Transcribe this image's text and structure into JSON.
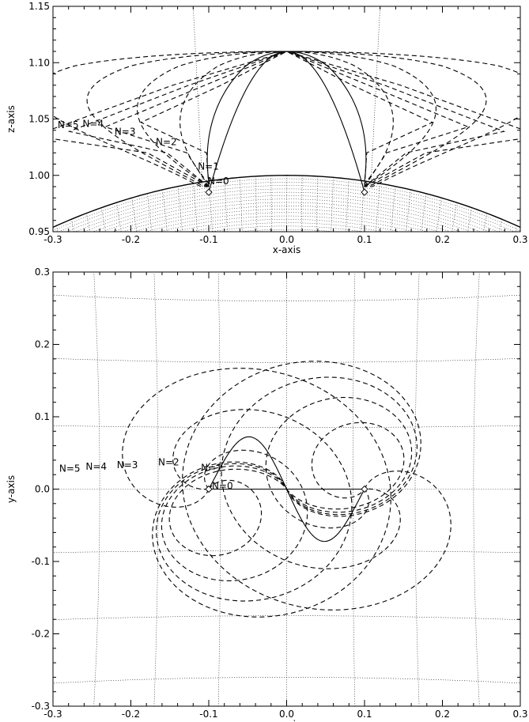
{
  "chart_data": [
    {
      "type": "line",
      "title": "",
      "xlabel": "x-axis",
      "ylabel": "z-axis",
      "xlim": [
        -0.3,
        0.3
      ],
      "ylim": [
        0.95,
        1.15
      ],
      "xticks": [
        "-0.3",
        "-0.2",
        "-0.1",
        "0.0",
        "0.1",
        "0.2",
        "0.3"
      ],
      "yticks": [
        "0.95",
        "1.00",
        "1.05",
        "1.10",
        "1.15"
      ],
      "grid": "dotted spherical grid",
      "footpoints": [
        [
          -0.1,
          0.985
        ],
        [
          0.1,
          0.985
        ]
      ],
      "labels": [
        {
          "text": "N=5",
          "x": -0.294,
          "z": 1.042
        },
        {
          "text": "N=4",
          "x": -0.262,
          "z": 1.043
        },
        {
          "text": "N=3",
          "x": -0.221,
          "z": 1.036
        },
        {
          "text": "N=2",
          "x": -0.168,
          "z": 1.027
        },
        {
          "text": "N=1",
          "x": -0.114,
          "z": 1.005
        },
        {
          "text": "N=0",
          "x": -0.101,
          "z": 0.992
        }
      ]
    },
    {
      "type": "line",
      "title": "",
      "xlabel": "x-axis",
      "ylabel": "y-axis",
      "xlim": [
        -0.3,
        0.3
      ],
      "ylim": [
        -0.3,
        0.3
      ],
      "xticks": [
        "-0.3",
        "-0.2",
        "-0.1",
        "0.0",
        "0.1",
        "0.2",
        "0.3"
      ],
      "yticks": [
        "-0.3",
        "-0.2",
        "-0.1",
        "0.0",
        "0.1",
        "0.2",
        "0.3"
      ],
      "grid": "dotted spherical grid",
      "footpoints": [
        [
          -0.1,
          0.0
        ],
        [
          0.1,
          0.0
        ]
      ],
      "labels": [
        {
          "text": "N=5",
          "x": -0.292,
          "y": 0.024
        },
        {
          "text": "N=4",
          "x": -0.258,
          "y": 0.027
        },
        {
          "text": "N=3",
          "x": -0.218,
          "y": 0.029
        },
        {
          "text": "N=2",
          "x": -0.165,
          "y": 0.033
        },
        {
          "text": "N=1",
          "x": -0.11,
          "y": 0.025
        },
        {
          "text": "N=0",
          "x": -0.096,
          "y": 0.0
        }
      ]
    }
  ]
}
